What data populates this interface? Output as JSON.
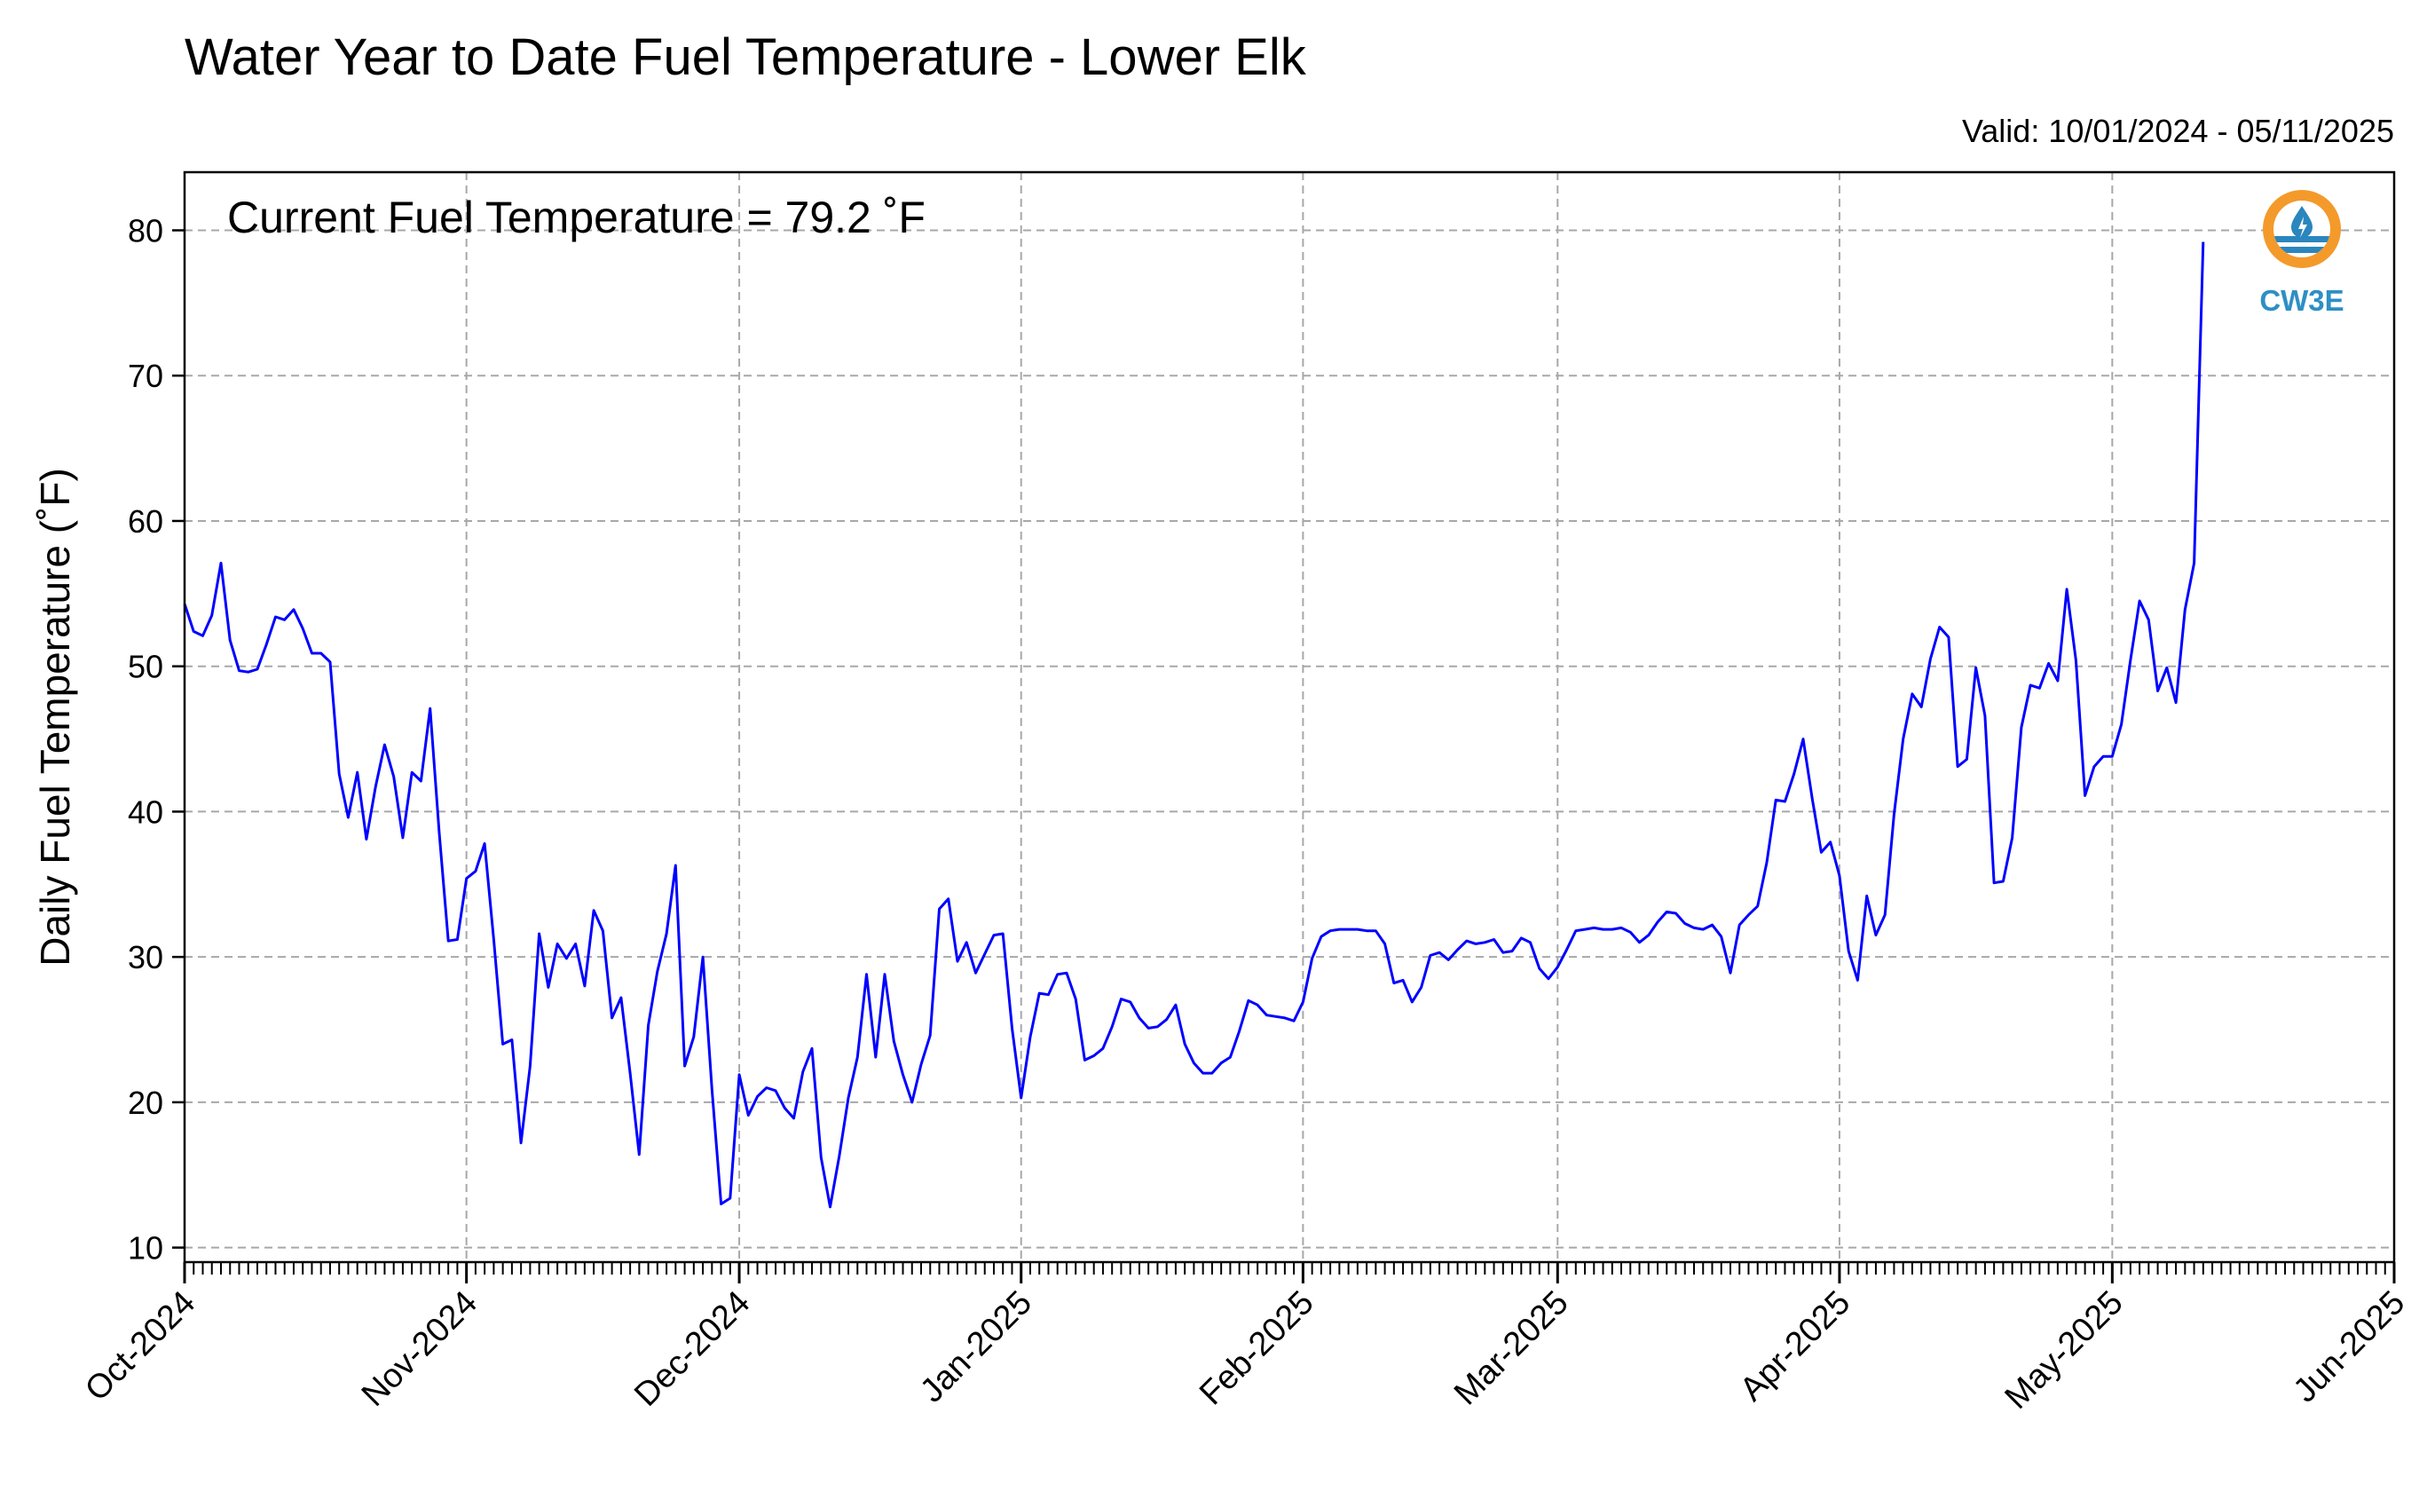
{
  "chart_data": {
    "type": "line",
    "title": "Water Year to Date Fuel Temperature - Lower Elk",
    "subtitle": "Valid: 10/01/2024 - 05/11/2025",
    "annotation": "Current Fuel Temperature = 79.2 ˚F",
    "ylabel": "Daily Fuel Temperature (˚F)",
    "xlabel": "",
    "ylim": [
      9,
      84
    ],
    "yticks": [
      "10",
      "20",
      "30",
      "40",
      "50",
      "60",
      "70",
      "80"
    ],
    "xlim": [
      "2024-10-01",
      "2025-06-01"
    ],
    "xticks": [
      "Oct-2024",
      "Nov-2024",
      "Dec-2024",
      "Jan-2025",
      "Feb-2025",
      "Mar-2025",
      "Apr-2025",
      "May-2025",
      "Jun-2025"
    ],
    "grid": true,
    "line_color": "#0000ff",
    "logo_label": "CW3E",
    "series": [
      {
        "x_start": "2024-10-01",
        "step_days": 1,
        "values": [
          54.3,
          52.4,
          52.1,
          53.5,
          57.1,
          51.8,
          49.7,
          49.6,
          49.8,
          51.5,
          53.4,
          53.2,
          53.9,
          52.6,
          50.9,
          50.9,
          50.3,
          42.6,
          39.6,
          42.7,
          38.1,
          41.7,
          44.6,
          42.4,
          38.2,
          42.7,
          42.1,
          47.1,
          38.6,
          31.1,
          31.2,
          35.4,
          35.9,
          37.8,
          31.2,
          24.0,
          24.3,
          17.2,
          22.5,
          31.6,
          27.9,
          30.9,
          29.9,
          30.9,
          28.0,
          33.2,
          31.8,
          25.8,
          27.2,
          22.0,
          16.4,
          25.3,
          29.0,
          31.6,
          36.3,
          22.5,
          24.5,
          30.0,
          20.9,
          13.0,
          13.4,
          21.9,
          19.1,
          20.4,
          21.0,
          20.8,
          19.6,
          18.9,
          22.1,
          23.7,
          16.2,
          12.8,
          16.3,
          20.3,
          23.1,
          28.8,
          23.1,
          28.8,
          24.2,
          21.9,
          20.0,
          22.6,
          24.6,
          33.3,
          34.0,
          29.7,
          31.0,
          28.9,
          30.2,
          31.5,
          31.6,
          25.1,
          20.3,
          24.5,
          27.5,
          27.4,
          28.8,
          28.9,
          27.1,
          22.9,
          23.2,
          23.7,
          25.2,
          27.1,
          26.9,
          25.8,
          25.1,
          25.2,
          25.7,
          26.7,
          24.0,
          22.7,
          22.0,
          22.0,
          22.7,
          23.1,
          24.9,
          27.0,
          26.7,
          26.0,
          25.9,
          25.8,
          25.6,
          26.9,
          29.9,
          31.4,
          31.8,
          31.9,
          31.9,
          31.9,
          31.8,
          31.8,
          30.9,
          28.2,
          28.4,
          26.9,
          27.9,
          30.1,
          30.3,
          29.8,
          30.5,
          31.1,
          30.9,
          31.0,
          31.2,
          30.3,
          30.4,
          31.3,
          31.0,
          29.2,
          28.5,
          29.3,
          30.5,
          31.8,
          31.9,
          32.0,
          31.9,
          31.9,
          32.0,
          31.7,
          31.0,
          31.5,
          32.4,
          33.1,
          33.0,
          32.3,
          32.0,
          31.9,
          32.2,
          31.4,
          28.9,
          32.2,
          32.9,
          33.5,
          36.5,
          40.8,
          40.7,
          42.6,
          45.0,
          40.9,
          37.2,
          37.9,
          35.6,
          30.4,
          28.4,
          34.2,
          31.5,
          32.9,
          39.8,
          45.0,
          48.1,
          47.2,
          50.5,
          52.7,
          52.0,
          43.1,
          43.6,
          49.9,
          46.6,
          35.1,
          35.2,
          38.2,
          45.8,
          48.7,
          48.5,
          50.2,
          49.0,
          55.3,
          50.4,
          41.1,
          43.1,
          43.8,
          43.8,
          46.0,
          50.4,
          54.5,
          53.2,
          48.3,
          49.9,
          47.5,
          53.9,
          57.1,
          79.2
        ]
      }
    ]
  }
}
